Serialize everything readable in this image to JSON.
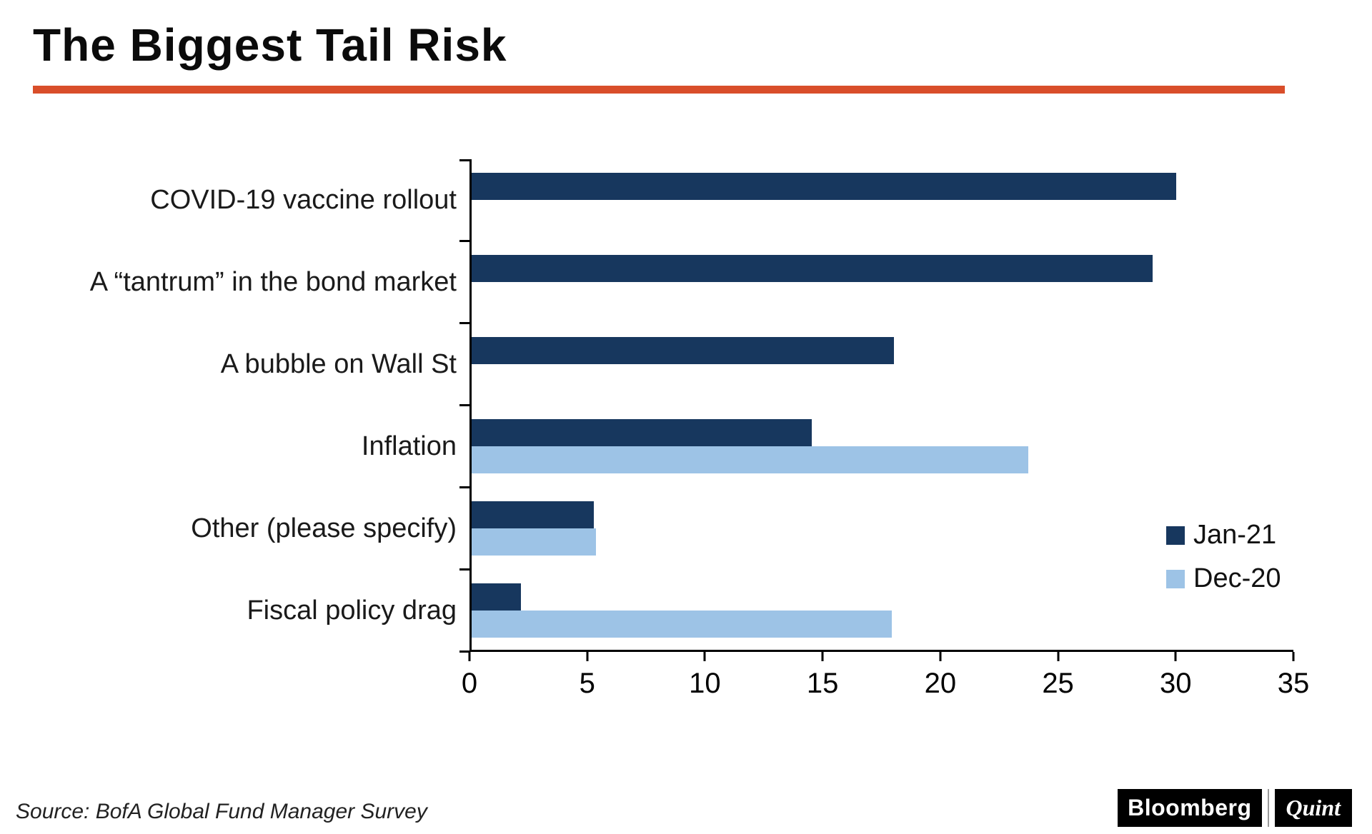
{
  "title": "The Biggest Tail Risk",
  "source": "Source: BofA Global Fund Manager Survey",
  "branding": {
    "bloomberg": "Bloomberg",
    "quint": "Quint"
  },
  "colors": {
    "accent_rule": "#d94e2a",
    "jan_series": "#17375e",
    "dec_series": "#9dc3e6",
    "axis": "#000000"
  },
  "chart_data": {
    "type": "bar",
    "orientation": "horizontal",
    "title": "The Biggest Tail Risk",
    "categories": [
      "COVID-19 vaccine rollout",
      "A “tantrum” in the bond market",
      "A bubble on Wall St",
      "Inflation",
      "Other (please specify)",
      "Fiscal policy drag"
    ],
    "series": [
      {
        "name": "Jan-21",
        "color": "#17375e",
        "values": [
          30,
          29,
          18,
          14.5,
          5.2,
          2.1
        ]
      },
      {
        "name": "Dec-20",
        "color": "#9dc3e6",
        "values": [
          null,
          null,
          null,
          23.7,
          5.3,
          17.9
        ]
      }
    ],
    "xlim": [
      0,
      35
    ],
    "xticks": [
      0,
      5,
      10,
      15,
      20,
      25,
      30,
      35
    ],
    "xlabel": "",
    "ylabel": "",
    "grid": false,
    "legend_position": "right-middle"
  }
}
